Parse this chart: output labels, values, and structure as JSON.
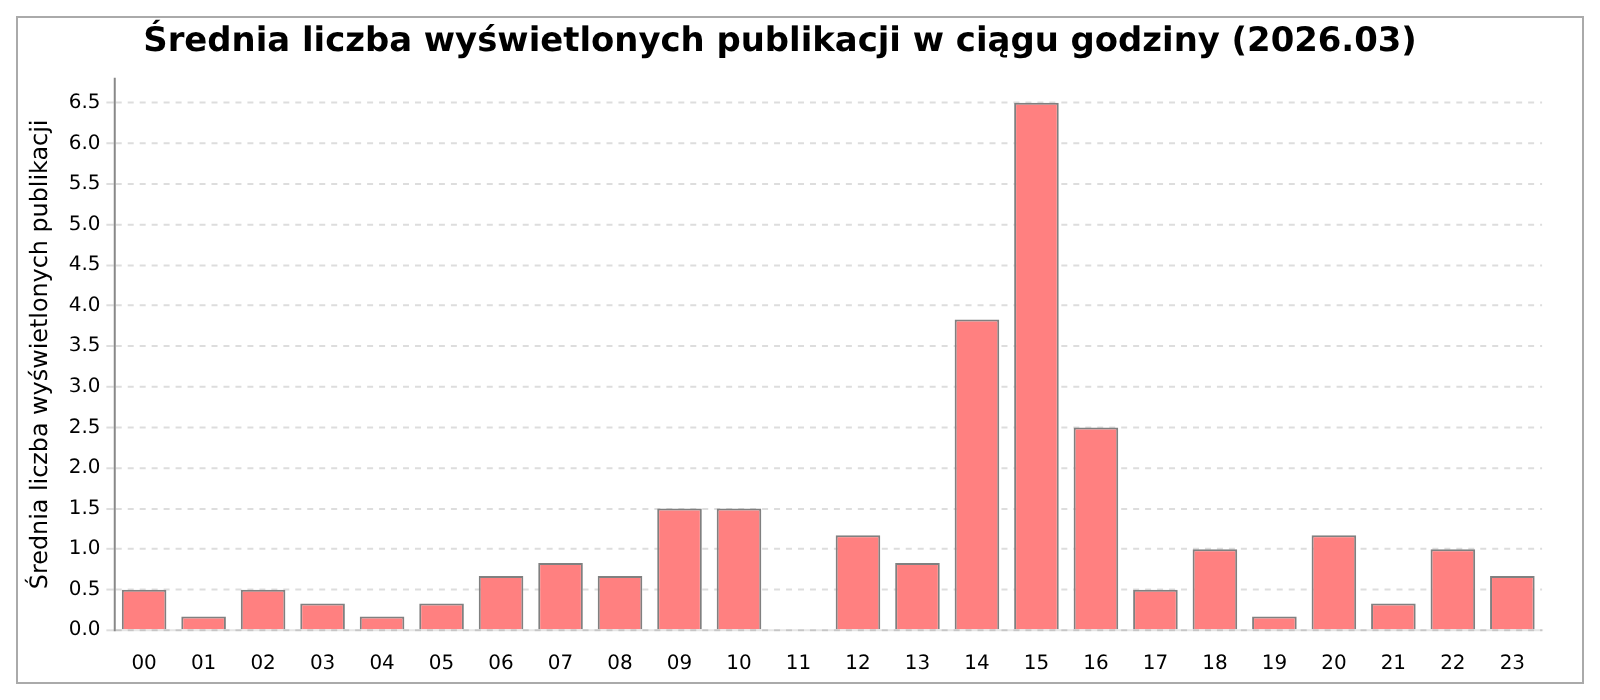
{
  "chart_data": {
    "type": "bar",
    "title": "Średnia liczba wyświetlonych publikacji w ciągu godziny (2026.03)",
    "ylabel": "Średnia liczba wyświetlonych publikacji",
    "categories": [
      "00",
      "01",
      "02",
      "03",
      "04",
      "05",
      "06",
      "07",
      "08",
      "09",
      "10",
      "11",
      "12",
      "13",
      "14",
      "15",
      "16",
      "17",
      "18",
      "19",
      "20",
      "21",
      "22",
      "23"
    ],
    "values": [
      0.5,
      0.17,
      0.5,
      0.33,
      0.17,
      0.33,
      0.67,
      0.83,
      0.67,
      1.5,
      1.5,
      0,
      1.17,
      0.83,
      3.83,
      6.5,
      2.5,
      0.5,
      1,
      0.17,
      1.17,
      0.33,
      1,
      0.67
    ],
    "color": "#ff8080",
    "ylim": [
      0,
      6.8
    ],
    "yticks": [
      {
        "value": 0,
        "label": "0.0"
      },
      0.5,
      {
        "value": 1,
        "label": "1.0"
      },
      1.5,
      {
        "value": 2,
        "label": "2.0"
      },
      2.5,
      {
        "value": 3,
        "label": "3.0"
      },
      3.5,
      {
        "value": 4,
        "label": "4.0"
      },
      4.5,
      {
        "value": 5,
        "label": "5.0"
      },
      5.5,
      {
        "value": 6,
        "label": "6.0"
      },
      6.5
    ],
    "grid": "y",
    "legend": false
  }
}
